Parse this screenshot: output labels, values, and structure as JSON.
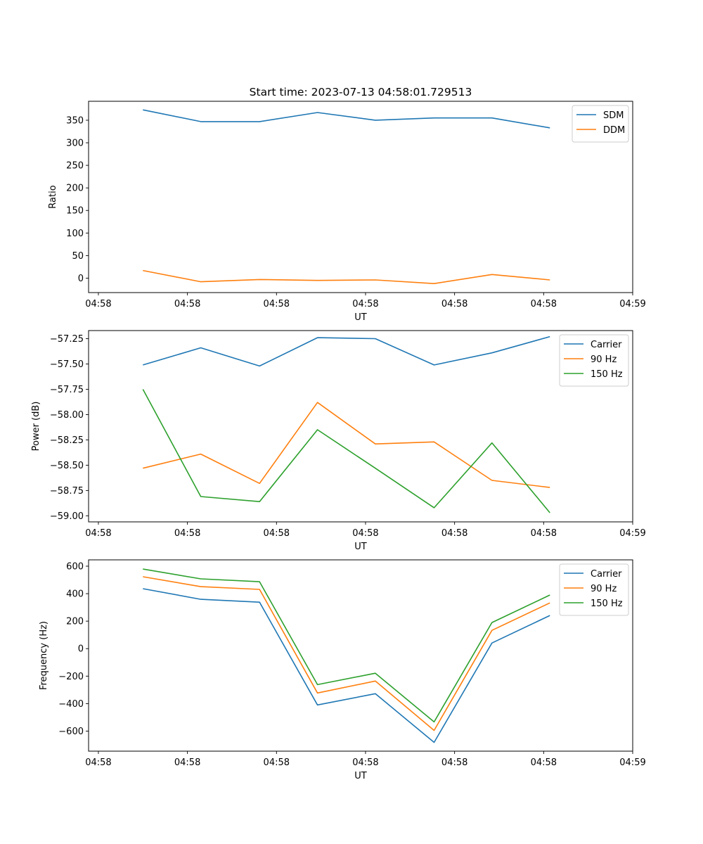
{
  "chart_data": [
    {
      "type": "line",
      "title": "Start time: 2023-07-13 04:58:01.729513",
      "xlabel": "UT",
      "ylabel": "Ratio",
      "x": [
        0.5,
        1.15,
        1.81,
        2.46,
        3.11,
        3.77,
        4.42,
        5.07
      ],
      "xlim": [
        -0.11,
        6.0
      ],
      "xticks": [
        0,
        1,
        2,
        3,
        4,
        5,
        6
      ],
      "xtick_labels": [
        "04:58",
        "04:58",
        "04:58",
        "04:58",
        "04:58",
        "04:58",
        "04:59"
      ],
      "ylim": [
        -32,
        392
      ],
      "yticks": [
        0,
        50,
        100,
        150,
        200,
        250,
        300,
        350
      ],
      "ytick_labels": [
        "0",
        "50",
        "100",
        "150",
        "200",
        "250",
        "300",
        "350"
      ],
      "legend": "top-right",
      "grid": false,
      "series": [
        {
          "name": "SDM",
          "color": "#1f77b4",
          "values": [
            373,
            347,
            347,
            367,
            350,
            355,
            355,
            333
          ]
        },
        {
          "name": "DDM",
          "color": "#ff7f0e",
          "values": [
            17,
            -8,
            -3,
            -5,
            -4,
            -12,
            8,
            -4
          ]
        }
      ]
    },
    {
      "type": "line",
      "title": "",
      "xlabel": "UT",
      "ylabel": "Power (dB)",
      "x": [
        0.5,
        1.15,
        1.81,
        2.46,
        3.11,
        3.77,
        4.42,
        5.07
      ],
      "xlim": [
        -0.11,
        6.0
      ],
      "xticks": [
        0,
        1,
        2,
        3,
        4,
        5,
        6
      ],
      "xtick_labels": [
        "04:58",
        "04:58",
        "04:58",
        "04:58",
        "04:58",
        "04:58",
        "04:59"
      ],
      "ylim": [
        -59.06,
        -57.17
      ],
      "yticks": [
        -59.0,
        -58.75,
        -58.5,
        -58.25,
        -58.0,
        -57.75,
        -57.5,
        -57.25
      ],
      "ytick_labels": [
        "−59.00",
        "−58.75",
        "−58.50",
        "−58.25",
        "−58.00",
        "−57.75",
        "−57.50",
        "−57.25"
      ],
      "legend": "top-right",
      "grid": false,
      "series": [
        {
          "name": "Carrier",
          "color": "#1f77b4",
          "values": [
            -57.51,
            -57.34,
            -57.52,
            -57.24,
            -57.25,
            -57.51,
            -57.39,
            -57.23
          ]
        },
        {
          "name": "90 Hz",
          "color": "#ff7f0e",
          "values": [
            -58.53,
            -58.39,
            -58.68,
            -57.88,
            -58.29,
            -58.27,
            -58.65,
            -58.72
          ]
        },
        {
          "name": "150 Hz",
          "color": "#2ca02c",
          "values": [
            -57.75,
            -58.81,
            -58.86,
            -58.15,
            -58.53,
            -58.92,
            -58.28,
            -58.97
          ]
        }
      ]
    },
    {
      "type": "line",
      "title": "",
      "xlabel": "UT",
      "ylabel": "Frequency (Hz)",
      "x": [
        0.5,
        1.15,
        1.81,
        2.46,
        3.11,
        3.77,
        4.42,
        5.07
      ],
      "xlim": [
        -0.11,
        6.0
      ],
      "xticks": [
        0,
        1,
        2,
        3,
        4,
        5,
        6
      ],
      "xtick_labels": [
        "04:58",
        "04:58",
        "04:58",
        "04:58",
        "04:58",
        "04:58",
        "04:59"
      ],
      "ylim": [
        -746,
        646
      ],
      "yticks": [
        -600,
        -400,
        -200,
        0,
        200,
        400,
        600
      ],
      "ytick_labels": [
        "−600",
        "−400",
        "−200",
        "0",
        "200",
        "400",
        "600"
      ],
      "legend": "top-right",
      "grid": false,
      "series": [
        {
          "name": "Carrier",
          "color": "#1f77b4",
          "values": [
            436,
            359,
            338,
            -410,
            -328,
            -682,
            41,
            241
          ]
        },
        {
          "name": "90 Hz",
          "color": "#ff7f0e",
          "values": [
            523,
            451,
            431,
            -323,
            -236,
            -595,
            133,
            333
          ]
        },
        {
          "name": "150 Hz",
          "color": "#2ca02c",
          "values": [
            579,
            508,
            487,
            -262,
            -179,
            -533,
            190,
            390
          ]
        }
      ]
    }
  ]
}
